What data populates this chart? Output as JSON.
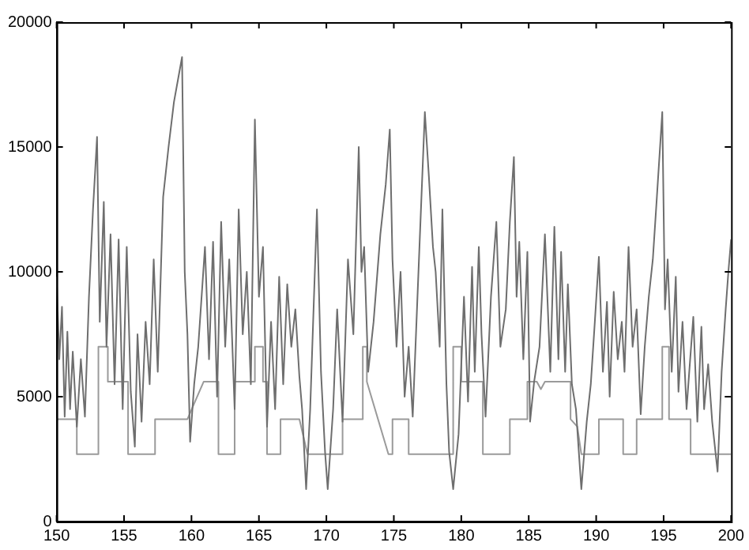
{
  "chart_data": {
    "type": "line",
    "xlim": [
      150,
      200
    ],
    "xticks": [
      150,
      155,
      160,
      165,
      170,
      175,
      180,
      185,
      190,
      195,
      200
    ],
    "ylim": [
      0,
      20000
    ],
    "yticks": [
      0,
      5000,
      10000,
      15000,
      20000
    ],
    "grid": false,
    "legend": false,
    "marker": "none",
    "series": [
      {
        "color": "#6e6e6e",
        "x": [
          150,
          150.2,
          150.4,
          150.6,
          150.8,
          151.0,
          151.2,
          151.5,
          151.8,
          152.1,
          152.4,
          152.7,
          153.0,
          153.2,
          153.5,
          153.7,
          154.0,
          154.3,
          154.6,
          154.9,
          155.2,
          155.5,
          155.8,
          156.0,
          156.3,
          156.6,
          156.9,
          157.2,
          157.5,
          157.9,
          158.3,
          158.7,
          159.3,
          159.5,
          159.7,
          159.9,
          160.2,
          160.5,
          161.0,
          161.3,
          161.6,
          161.9,
          162.2,
          162.5,
          162.8,
          163.2,
          163.5,
          163.8,
          164.1,
          164.4,
          164.7,
          165.0,
          165.3,
          165.6,
          165.9,
          166.2,
          166.5,
          166.8,
          167.1,
          167.4,
          167.7,
          168.0,
          168.2,
          168.5,
          168.8,
          169.3,
          169.6,
          169.9,
          170.1,
          170.5,
          170.8,
          171.2,
          171.6,
          172.0,
          172.4,
          172.6,
          172.8,
          173.1,
          173.5,
          174.0,
          174.4,
          174.7,
          174.9,
          175.2,
          175.5,
          175.8,
          176.1,
          176.4,
          176.9,
          177.3,
          177.6,
          177.9,
          178.1,
          178.4,
          178.6,
          178.9,
          179.1,
          179.4,
          179.8,
          180.2,
          180.5,
          180.8,
          181.0,
          181.3,
          181.5,
          181.8,
          182.2,
          182.6,
          182.9,
          183.3,
          183.6,
          183.9,
          184.1,
          184.3,
          184.6,
          184.9,
          185.1,
          185.4,
          185.8,
          186.2,
          186.6,
          186.9,
          187.2,
          187.4,
          187.7,
          187.9,
          188.2,
          188.5,
          188.9,
          189.3,
          189.6,
          189.9,
          190.2,
          190.5,
          190.8,
          191.0,
          191.3,
          191.6,
          191.9,
          192.1,
          192.4,
          192.7,
          193.0,
          193.3,
          193.6,
          193.9,
          194.2,
          194.5,
          194.9,
          195.1,
          195.3,
          195.6,
          195.9,
          196.1,
          196.4,
          196.7,
          196.9,
          197.2,
          197.5,
          197.8,
          198.0,
          198.3,
          198.6,
          199.0,
          199.3,
          199.6,
          199.8,
          200
        ],
        "values": [
          9800,
          6500,
          8600,
          4200,
          7600,
          4500,
          6800,
          3800,
          6500,
          4200,
          9000,
          12500,
          15400,
          8000,
          12800,
          7000,
          11500,
          5500,
          11300,
          4500,
          11000,
          5200,
          3000,
          7500,
          4000,
          8000,
          5500,
          10500,
          6000,
          13000,
          15000,
          16800,
          18600,
          10000,
          7500,
          3200,
          5500,
          7000,
          11000,
          6500,
          11200,
          5000,
          12000,
          7000,
          10500,
          4500,
          12500,
          7500,
          10000,
          5500,
          16100,
          9000,
          11000,
          3800,
          8000,
          4500,
          9800,
          5500,
          9500,
          7000,
          8500,
          5800,
          4500,
          1300,
          4500,
          12500,
          6000,
          2800,
          1300,
          4500,
          8500,
          4000,
          10500,
          7500,
          15000,
          10000,
          11000,
          6000,
          8000,
          11500,
          13500,
          15700,
          10500,
          7000,
          10000,
          5000,
          7000,
          4200,
          11000,
          16400,
          13800,
          11000,
          10000,
          7000,
          12500,
          5500,
          2800,
          1300,
          3500,
          9000,
          4800,
          10200,
          6000,
          11000,
          7500,
          4200,
          9000,
          12000,
          7000,
          8500,
          12000,
          14600,
          9000,
          11200,
          6500,
          10800,
          4000,
          5600,
          7000,
          11500,
          6000,
          11800,
          6500,
          10800,
          6000,
          9500,
          5500,
          4500,
          1300,
          4000,
          5500,
          8000,
          10600,
          6000,
          8800,
          5000,
          9200,
          6500,
          8000,
          6000,
          11000,
          7000,
          8500,
          4300,
          7000,
          9000,
          10500,
          13000,
          16400,
          8500,
          10500,
          6000,
          9800,
          5200,
          8000,
          4500,
          6000,
          8200,
          4000,
          7800,
          4500,
          6300,
          4000,
          2000,
          6000,
          8500,
          10000,
          11300
        ]
      },
      {
        "color": "#9a9a9a",
        "x": [
          150,
          151.5,
          151.5,
          153.1,
          153.1,
          153.8,
          153.8,
          155.3,
          155.3,
          157.3,
          157.3,
          159.7,
          160.9,
          162.0,
          162.0,
          163.2,
          163.2,
          164.7,
          164.7,
          165.3,
          165.3,
          165.6,
          165.6,
          166.6,
          166.6,
          168.0,
          168.6,
          169.6,
          171.2,
          171.2,
          172.7,
          172.7,
          173.0,
          173.0,
          174.6,
          174.9,
          174.9,
          176.1,
          176.1,
          179.4,
          179.4,
          180.0,
          180.0,
          181.6,
          181.6,
          183.6,
          183.6,
          184.9,
          184.9,
          185.6,
          185.9,
          186.2,
          188.1,
          188.1,
          188.6,
          188.9,
          190.2,
          190.2,
          192.0,
          192.0,
          193.0,
          193.0,
          194.9,
          194.9,
          195.4,
          195.4,
          197.0,
          197.0,
          200
        ],
        "values": [
          4100,
          4100,
          2700,
          2700,
          7000,
          7000,
          5600,
          5600,
          2700,
          2700,
          4100,
          4100,
          5600,
          5600,
          2700,
          2700,
          5600,
          5600,
          7000,
          7000,
          5600,
          5600,
          2700,
          2700,
          4100,
          4100,
          2700,
          2700,
          2700,
          4100,
          4100,
          7000,
          7000,
          5600,
          2700,
          2700,
          4100,
          4100,
          2700,
          2700,
          7000,
          7000,
          5600,
          5600,
          2700,
          2700,
          4100,
          4100,
          5600,
          5600,
          5300,
          5600,
          5600,
          4100,
          3800,
          2700,
          2700,
          4100,
          4100,
          2700,
          2700,
          4100,
          4100,
          7000,
          7000,
          4100,
          4100,
          2700,
          2700
        ]
      }
    ]
  }
}
